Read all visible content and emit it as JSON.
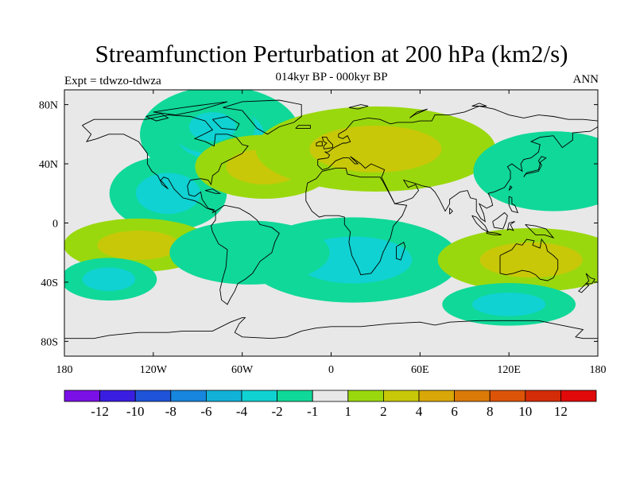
{
  "title": "Streamfunction Perturbation at 200 hPa (km2/s)",
  "subtitle": "014kyr BP - 000kyr BP",
  "left_label": "Expt = tdwzo-tdwza",
  "right_label": "ANN",
  "colors": {
    "background": "#e8e8e8",
    "coast": "#000000",
    "palette": [
      "#7a10e6",
      "#3a1ee0",
      "#1f53d8",
      "#1686de",
      "#12b2d8",
      "#10d2d2",
      "#10d898",
      "#e8e8e8",
      "#9ad80e",
      "#c8c808",
      "#d8a808",
      "#dc7a08",
      "#dc5408",
      "#d42c08",
      "#e00a0a"
    ]
  },
  "chart_data": {
    "type": "heatmap",
    "projection": "cylindrical-equidistant",
    "lon_range": [
      -180,
      180
    ],
    "lat_range": [
      -90,
      90
    ],
    "x_ticks": [
      {
        "lon": -180,
        "label": "180"
      },
      {
        "lon": -120,
        "label": "120W"
      },
      {
        "lon": -60,
        "label": "60W"
      },
      {
        "lon": 0,
        "label": "0"
      },
      {
        "lon": 60,
        "label": "60E"
      },
      {
        "lon": 120,
        "label": "120E"
      },
      {
        "lon": 180,
        "label": "180"
      }
    ],
    "y_ticks": [
      {
        "lat": 80,
        "label": "80N"
      },
      {
        "lat": 40,
        "label": "40N"
      },
      {
        "lat": 0,
        "label": "0"
      },
      {
        "lat": -40,
        "label": "40S"
      },
      {
        "lat": -80,
        "label": "80S"
      }
    ],
    "colorbar": {
      "levels": [
        -12,
        -10,
        -8,
        -6,
        -4,
        -2,
        -1,
        1,
        2,
        4,
        6,
        8,
        10,
        12
      ],
      "labels": [
        "-12",
        "-10",
        "-8",
        "-6",
        "-4",
        "-2",
        "-1",
        "1",
        "2",
        "4",
        "6",
        "8",
        "10",
        "12"
      ]
    },
    "anomalies": [
      {
        "region": "North America / Greenland",
        "lon": -75,
        "lat": 60,
        "level": -4,
        "rx": 30,
        "ry": 18
      },
      {
        "region": "Hudson Bay core",
        "lon": -80,
        "lat": 65,
        "level": -4,
        "rx": 16,
        "ry": 10
      },
      {
        "region": "Tropical east Pacific",
        "lon": -110,
        "lat": 20,
        "level": -4,
        "rx": 22,
        "ry": 14
      },
      {
        "region": "North Atlantic",
        "lon": -45,
        "lat": 38,
        "level": 2,
        "rx": 26,
        "ry": 12
      },
      {
        "region": "Eurasia",
        "lon": 30,
        "lat": 50,
        "level": 2,
        "rx": 45,
        "ry": 16
      },
      {
        "region": "East Pacific subtropics",
        "lon": -130,
        "lat": -15,
        "level": 2,
        "rx": 28,
        "ry": 10
      },
      {
        "region": "South Atlantic / Africa",
        "lon": 15,
        "lat": -25,
        "level": -4,
        "rx": 40,
        "ry": 16
      },
      {
        "region": "South America",
        "lon": -55,
        "lat": -20,
        "level": -2,
        "rx": 30,
        "ry": 12
      },
      {
        "region": "Australia",
        "lon": 135,
        "lat": -25,
        "level": 2,
        "rx": 35,
        "ry": 12
      },
      {
        "region": "South Pacific",
        "lon": -150,
        "lat": -38,
        "level": -4,
        "rx": 18,
        "ry": 8
      },
      {
        "region": "Southern Ocean (Indian sector)",
        "lon": 120,
        "lat": -55,
        "level": -4,
        "rx": 25,
        "ry": 8
      },
      {
        "region": "West Pacific",
        "lon": 150,
        "lat": 35,
        "level": -2,
        "rx": 30,
        "ry": 15
      }
    ]
  }
}
